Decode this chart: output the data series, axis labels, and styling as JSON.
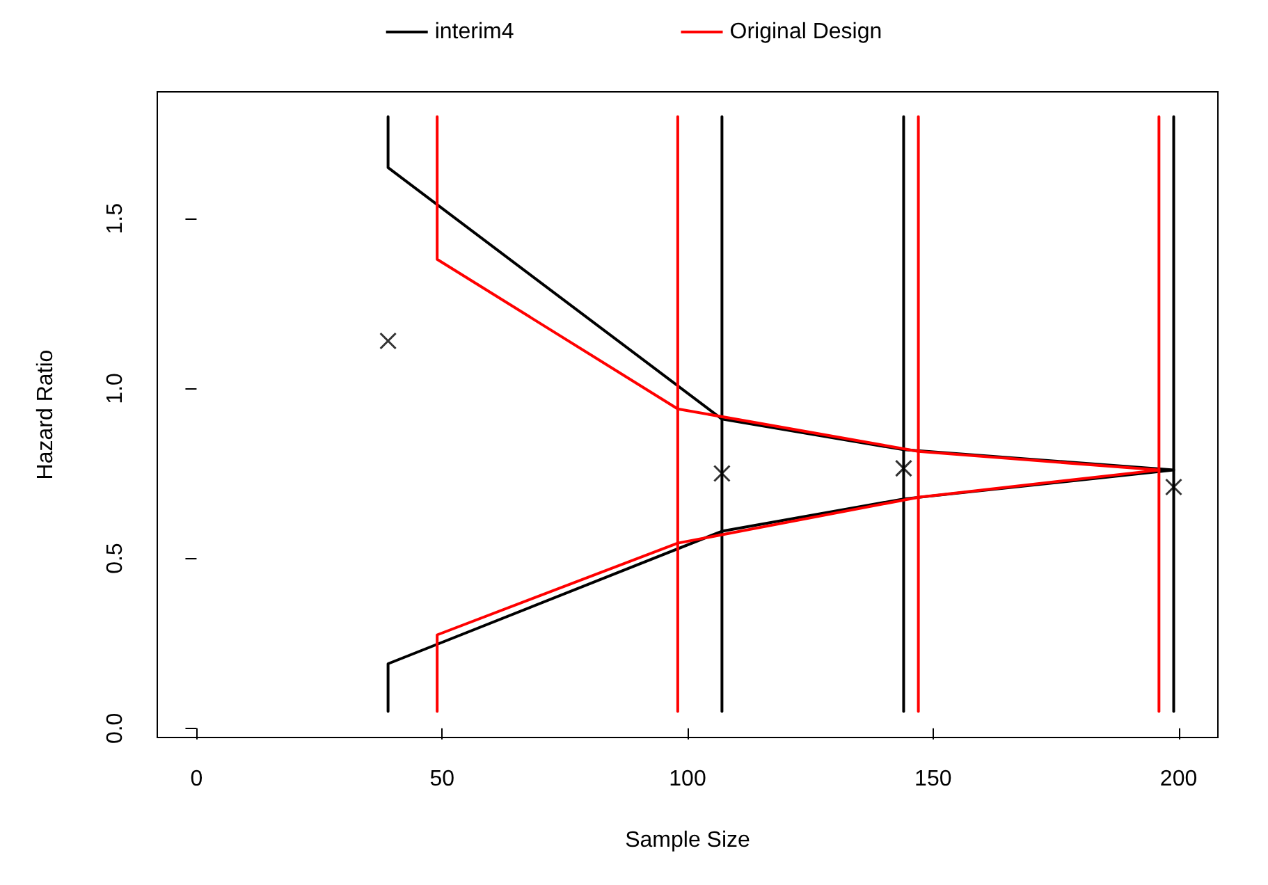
{
  "chart_data": {
    "type": "line",
    "xlabel": "Sample Size",
    "ylabel": "Hazard Ratio",
    "xlim": [
      -8,
      208
    ],
    "xticks": [
      0,
      50,
      100,
      150,
      200
    ],
    "ylim": [
      -0.027,
      1.873
    ],
    "yticks": [
      {
        "value": 0,
        "label": "0.0"
      },
      0.5,
      {
        "value": 1,
        "label": "1.0"
      },
      1.5
    ],
    "grid": false,
    "legend": "top",
    "marker": "none",
    "line_style": "solid",
    "series": [
      {
        "name": "interim4",
        "color": "#000000",
        "x": [
          39,
          39,
          107,
          144,
          199,
          144,
          107,
          39,
          39
        ],
        "values": [
          1.8,
          1.65,
          0.91,
          0.82,
          0.76,
          0.675,
          0.58,
          0.19,
          0.05
        ]
      },
      {
        "color": "#000000",
        "x": [
          107,
          107
        ],
        "values": [
          1.8,
          0.05
        ]
      },
      {
        "color": "#000000",
        "x": [
          144,
          144
        ],
        "values": [
          1.8,
          0.05
        ]
      },
      {
        "color": "#000000",
        "x": [
          199,
          199
        ],
        "values": [
          1.8,
          0.05
        ]
      },
      {
        "name": "Original Design",
        "color": "#ff0000",
        "x": [
          49,
          49,
          98,
          147,
          196,
          147,
          98,
          49,
          49
        ],
        "values": [
          1.8,
          1.38,
          0.94,
          0.815,
          0.76,
          0.68,
          0.545,
          0.275,
          0.05
        ]
      },
      {
        "color": "#ff0000",
        "x": [
          98,
          98
        ],
        "values": [
          1.8,
          0.05
        ]
      },
      {
        "color": "#ff0000",
        "x": [
          147,
          147
        ],
        "values": [
          1.8,
          0.05
        ]
      },
      {
        "color": "#ff0000",
        "x": [
          196,
          196
        ],
        "values": [
          1.8,
          0.05
        ]
      },
      {
        "type": "scatter",
        "marker": "cross",
        "color": "#000000",
        "x": [
          39,
          107,
          144,
          199
        ],
        "values": [
          1.14,
          0.75,
          0.765,
          0.71
        ]
      }
    ]
  }
}
